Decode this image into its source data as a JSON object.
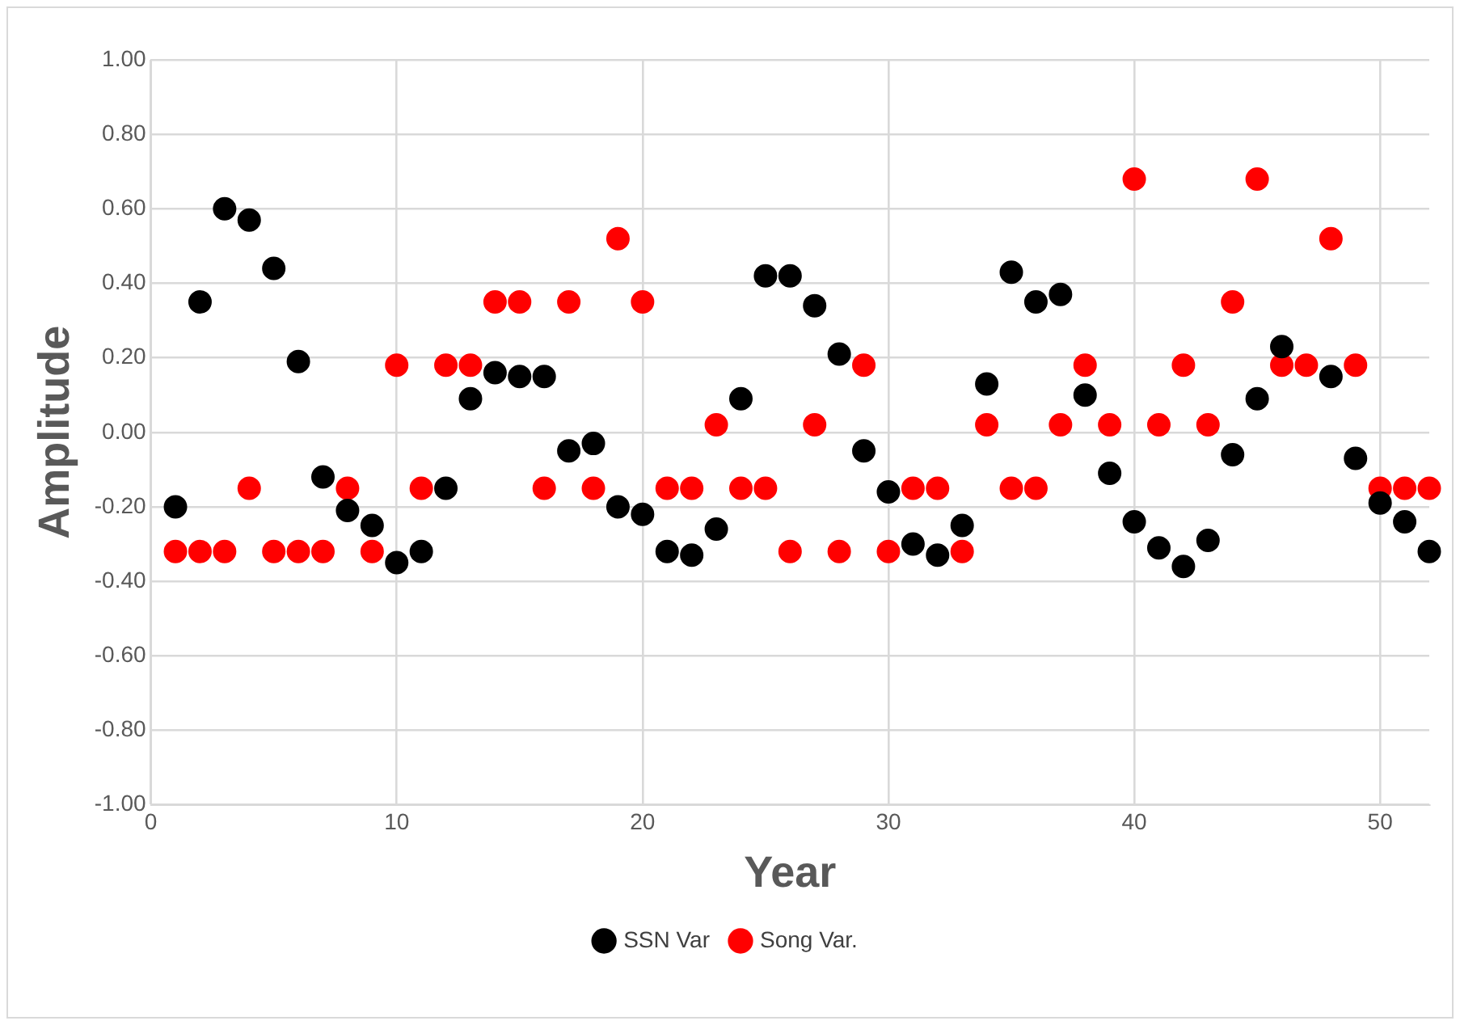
{
  "chart_data": {
    "type": "scatter",
    "xlabel": "Year",
    "ylabel": "Amplitude",
    "x": [
      1,
      2,
      3,
      4,
      5,
      6,
      7,
      8,
      9,
      10,
      11,
      12,
      13,
      14,
      15,
      16,
      17,
      18,
      19,
      20,
      21,
      22,
      23,
      24,
      25,
      26,
      27,
      28,
      29,
      30,
      31,
      32,
      33,
      34,
      35,
      36,
      37,
      38,
      39,
      40,
      41,
      42,
      43,
      44,
      45,
      46,
      47,
      48,
      49,
      50,
      51,
      52
    ],
    "series": [
      {
        "name": "SSN Var",
        "color": "#000000",
        "values": [
          -0.2,
          0.35,
          0.6,
          0.57,
          0.44,
          0.19,
          -0.12,
          -0.21,
          -0.25,
          -0.35,
          -0.32,
          -0.15,
          0.09,
          0.16,
          0.15,
          0.15,
          -0.05,
          -0.03,
          -0.2,
          -0.22,
          -0.32,
          -0.33,
          -0.26,
          0.09,
          0.42,
          0.42,
          0.34,
          0.21,
          -0.05,
          -0.16,
          -0.3,
          -0.33,
          -0.25,
          0.13,
          0.43,
          0.35,
          0.37,
          0.1,
          -0.11,
          -0.24,
          -0.31,
          -0.36,
          -0.29,
          -0.06,
          0.09,
          0.23,
          null,
          0.15,
          -0.07,
          -0.19,
          -0.24,
          -0.32
        ]
      },
      {
        "name": "Song Var.",
        "color": "#ff0000",
        "values": [
          -0.32,
          -0.32,
          -0.32,
          -0.15,
          -0.32,
          -0.32,
          -0.32,
          -0.15,
          -0.32,
          0.18,
          -0.15,
          0.18,
          0.18,
          0.35,
          0.35,
          -0.15,
          0.35,
          -0.15,
          0.52,
          0.35,
          -0.15,
          -0.15,
          0.02,
          -0.15,
          -0.15,
          -0.32,
          0.02,
          -0.32,
          0.18,
          -0.32,
          -0.15,
          -0.15,
          -0.32,
          0.02,
          -0.15,
          -0.15,
          0.02,
          0.18,
          0.02,
          0.68,
          0.02,
          0.18,
          0.02,
          0.35,
          0.68,
          0.18,
          0.18,
          0.52,
          0.18,
          -0.15,
          -0.15,
          -0.15
        ]
      }
    ],
    "xlim": [
      0,
      52
    ],
    "xticks": [
      0,
      10,
      20,
      30,
      40,
      50
    ],
    "ylim": [
      -1,
      1
    ],
    "yticks": [
      {
        "value": -1,
        "label": "-1.00"
      },
      {
        "value": -0.8,
        "label": "-0.80"
      },
      {
        "value": -0.6,
        "label": "-0.60"
      },
      {
        "value": -0.4,
        "label": "-0.40"
      },
      {
        "value": -0.2,
        "label": "-0.20"
      },
      {
        "value": 0,
        "label": "0.00"
      },
      {
        "value": 0.2,
        "label": "0.20"
      },
      {
        "value": 0.4,
        "label": "0.40"
      },
      {
        "value": 0.6,
        "label": "0.60"
      },
      {
        "value": 0.8,
        "label": "0.80"
      },
      {
        "value": 1,
        "label": "1.00"
      }
    ],
    "grid": true,
    "legend": "bottom",
    "marker": "circle"
  }
}
